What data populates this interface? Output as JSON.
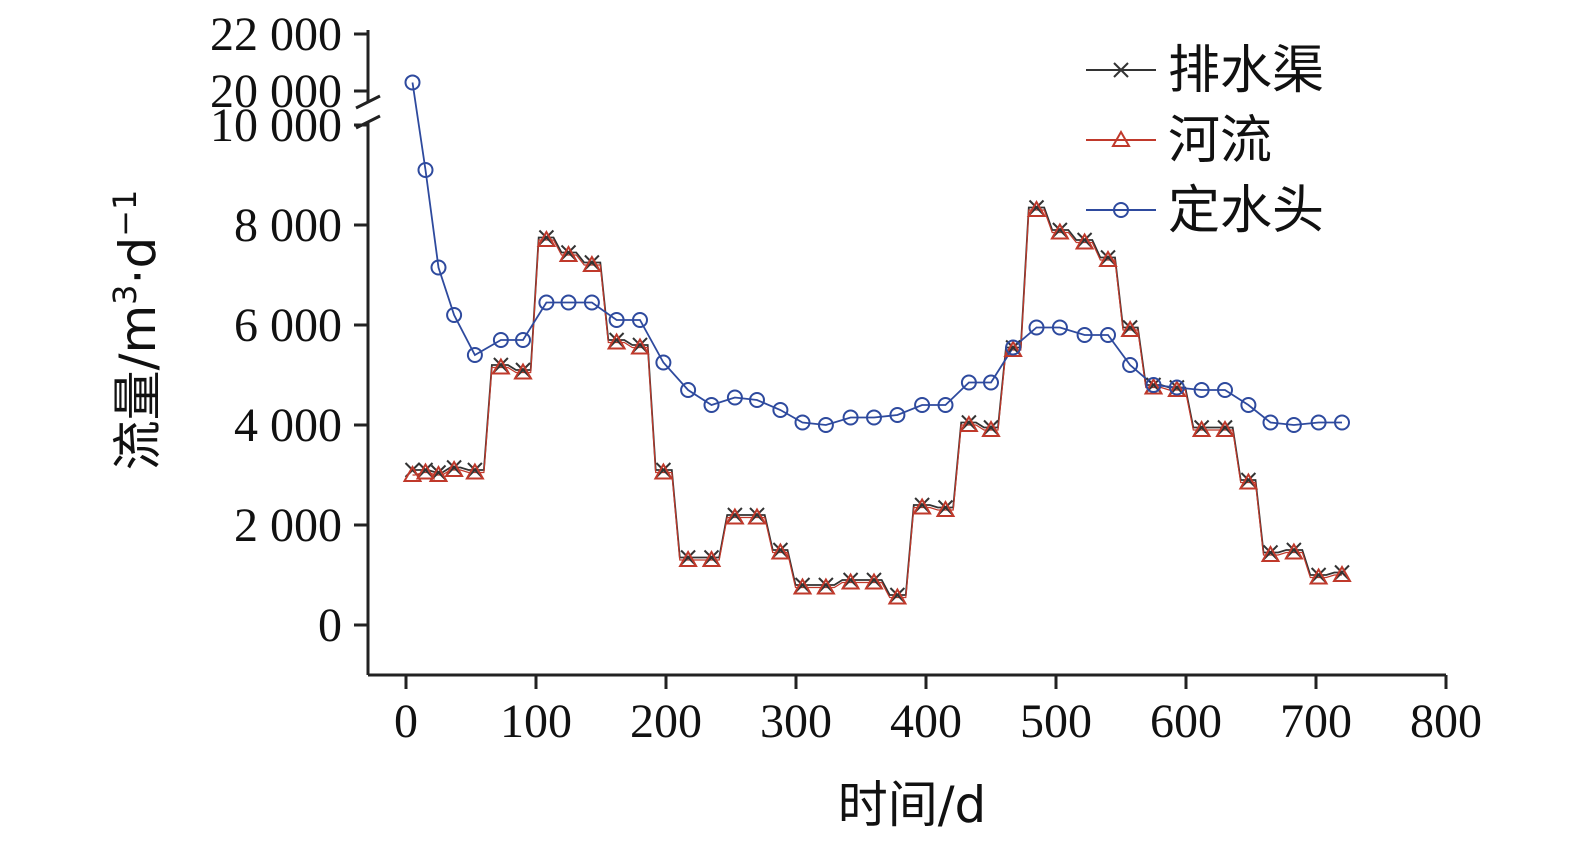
{
  "chart_data": {
    "type": "line",
    "xlabel": "时间/d",
    "ylabel": "流量/m³·d⁻¹",
    "ylabel_parts": {
      "main": "流量/m",
      "sup1": "3",
      "mid": "·d",
      "sup2": "−1"
    },
    "xlim": [
      0,
      800
    ],
    "xticks": [
      0,
      100,
      200,
      300,
      400,
      500,
      600,
      700,
      800
    ],
    "xtick_labels": [
      "0",
      "100",
      "200",
      "300",
      "400",
      "500",
      "600",
      "700",
      "800"
    ],
    "ylim": [
      0,
      22000
    ],
    "y_axis_break": [
      10000,
      20000
    ],
    "yticks": [
      0,
      2000,
      4000,
      6000,
      8000,
      10000,
      20000,
      22000
    ],
    "ytick_labels": [
      "0",
      "2 000",
      "4 000",
      "6 000",
      "8 000",
      "10 000",
      "20 000",
      "22 000"
    ],
    "legend_position": "top-right",
    "series": [
      {
        "name": "排水渠",
        "marker": "x",
        "color": "#333333",
        "x": [
          5,
          15,
          25,
          37,
          53,
          73,
          90,
          108,
          125,
          143,
          162,
          180,
          198,
          217,
          235,
          253,
          270,
          288,
          305,
          323,
          342,
          360,
          378,
          397,
          415,
          433,
          450,
          467,
          485,
          503,
          522,
          540,
          557,
          575,
          593,
          612,
          630,
          648,
          665,
          683,
          702,
          720
        ],
        "values": [
          3100,
          3100,
          3050,
          3150,
          3100,
          5200,
          5100,
          7750,
          7450,
          7250,
          5700,
          5600,
          3100,
          1350,
          1350,
          2200,
          2200,
          1500,
          800,
          800,
          900,
          900,
          600,
          2400,
          2350,
          4050,
          3950,
          5550,
          8350,
          7900,
          7700,
          7350,
          5950,
          4800,
          4750,
          3950,
          3950,
          2900,
          1450,
          1500,
          1000,
          1050
        ]
      },
      {
        "name": "河流",
        "marker": "triangle",
        "color": "#c0392b",
        "x": [
          5,
          15,
          25,
          37,
          53,
          73,
          90,
          108,
          125,
          143,
          162,
          180,
          198,
          217,
          235,
          253,
          270,
          288,
          305,
          323,
          342,
          360,
          378,
          397,
          415,
          433,
          450,
          467,
          485,
          503,
          522,
          540,
          557,
          575,
          593,
          612,
          630,
          648,
          665,
          683,
          702,
          720
        ],
        "values": [
          3000,
          3050,
          3000,
          3100,
          3050,
          5150,
          5050,
          7700,
          7400,
          7200,
          5650,
          5550,
          3050,
          1300,
          1300,
          2150,
          2150,
          1450,
          750,
          750,
          850,
          850,
          550,
          2350,
          2300,
          4000,
          3900,
          5500,
          8300,
          7850,
          7650,
          7300,
          5900,
          4750,
          4700,
          3900,
          3900,
          2850,
          1400,
          1450,
          950,
          1000
        ]
      },
      {
        "name": "定水头",
        "marker": "circle",
        "color": "#2e4a9e",
        "x": [
          5,
          15,
          25,
          37,
          53,
          73,
          90,
          108,
          125,
          143,
          162,
          180,
          198,
          217,
          235,
          253,
          270,
          288,
          305,
          323,
          342,
          360,
          378,
          397,
          415,
          433,
          450,
          467,
          485,
          503,
          522,
          540,
          557,
          575,
          593,
          612,
          630,
          648,
          665,
          683,
          702,
          720
        ],
        "values": [
          20300,
          9100,
          7150,
          6200,
          5400,
          5700,
          5700,
          6450,
          6450,
          6450,
          6100,
          6100,
          5250,
          4700,
          4400,
          4550,
          4500,
          4300,
          4050,
          4000,
          4150,
          4150,
          4200,
          4400,
          4400,
          4850,
          4850,
          5550,
          5950,
          5950,
          5800,
          5800,
          5200,
          4800,
          4750,
          4700,
          4700,
          4400,
          4050,
          4000,
          4050,
          4050
        ]
      }
    ]
  },
  "colors": {
    "axis": "#222222",
    "drain": "#333333",
    "river": "#c0392b",
    "head": "#2e4a9e"
  }
}
